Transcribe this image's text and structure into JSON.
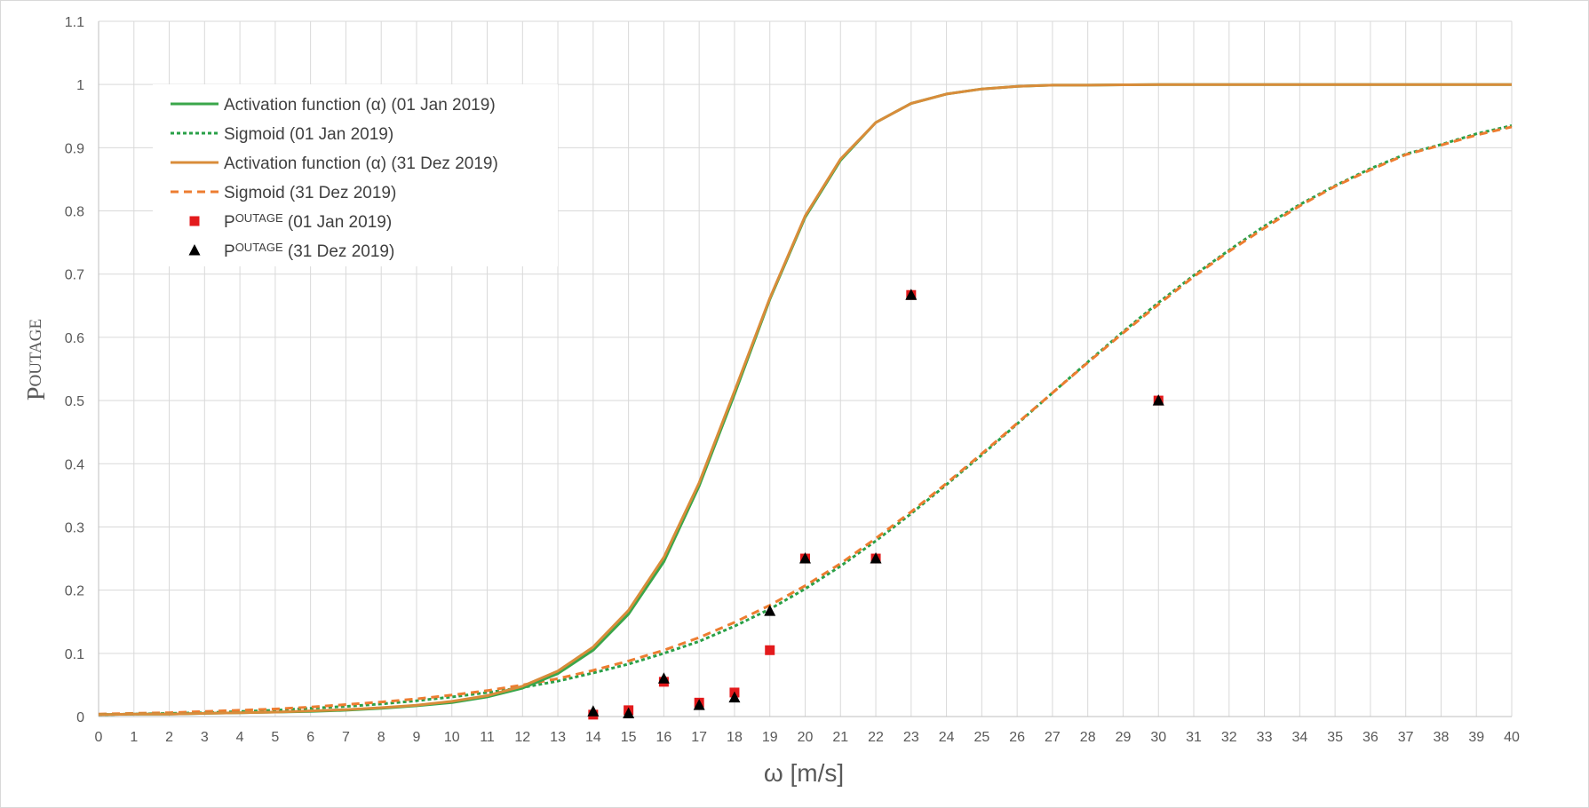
{
  "chart_data": {
    "type": "line",
    "xlabel": "ω [m/s]",
    "ylabel": {
      "main": "P",
      "super": "OUTAGE"
    },
    "xlim": [
      0,
      40
    ],
    "ylim": [
      0,
      1.1
    ],
    "x_ticks": [
      0,
      1,
      2,
      3,
      4,
      5,
      6,
      7,
      8,
      9,
      10,
      11,
      12,
      13,
      14,
      15,
      16,
      17,
      18,
      19,
      20,
      21,
      22,
      23,
      24,
      25,
      26,
      27,
      28,
      29,
      30,
      31,
      32,
      33,
      34,
      35,
      36,
      37,
      38,
      39,
      40
    ],
    "y_ticks": [
      0,
      0.1,
      0.2,
      0.3,
      0.4,
      0.5,
      0.6,
      0.7,
      0.8,
      0.9,
      1,
      1.1
    ],
    "y_tick_labels": [
      "0",
      "0.1",
      "0.2",
      "0.3",
      "0.4",
      "0.5",
      "0.6",
      "0.7",
      "0.8",
      "0.9",
      "1",
      "1.1"
    ],
    "grid": true,
    "legend_position": "top-left",
    "x": [
      0,
      1,
      2,
      3,
      4,
      5,
      6,
      7,
      8,
      9,
      10,
      11,
      12,
      13,
      14,
      15,
      16,
      17,
      18,
      19,
      20,
      21,
      22,
      23,
      24,
      25,
      26,
      27,
      28,
      29,
      30,
      31,
      32,
      33,
      34,
      35,
      36,
      37,
      38,
      39,
      40
    ],
    "series": [
      {
        "name": "Activation function (α) (01 Jan 2019)",
        "style": "solid",
        "color": "#3aa64a",
        "values": [
          0.003,
          0.004,
          0.004,
          0.005,
          0.006,
          0.007,
          0.008,
          0.01,
          0.013,
          0.017,
          0.022,
          0.031,
          0.045,
          0.068,
          0.105,
          0.162,
          0.245,
          0.365,
          0.51,
          0.66,
          0.79,
          0.88,
          0.94,
          0.97,
          0.985,
          0.993,
          0.997,
          0.999,
          0.999,
          0.9995,
          1,
          1,
          1,
          1,
          1,
          1,
          1,
          1,
          1,
          1,
          1
        ]
      },
      {
        "name": "Sigmoid (01 Jan 2019)",
        "style": "dotted",
        "color": "#2aa048",
        "values": [
          0.003,
          0.004,
          0.005,
          0.006,
          0.008,
          0.01,
          0.013,
          0.016,
          0.02,
          0.025,
          0.031,
          0.038,
          0.046,
          0.056,
          0.069,
          0.083,
          0.1,
          0.119,
          0.143,
          0.17,
          0.202,
          0.238,
          0.278,
          0.321,
          0.367,
          0.414,
          0.463,
          0.512,
          0.561,
          0.609,
          0.655,
          0.698,
          0.738,
          0.776,
          0.81,
          0.84,
          0.867,
          0.89,
          0.905,
          0.922,
          0.935
        ]
      },
      {
        "name": "Activation function (α) (31 Dez 2019)",
        "style": "solid",
        "color": "#d98c3a",
        "values": [
          0.003,
          0.004,
          0.004,
          0.005,
          0.006,
          0.007,
          0.009,
          0.011,
          0.014,
          0.018,
          0.024,
          0.033,
          0.048,
          0.072,
          0.11,
          0.168,
          0.252,
          0.37,
          0.515,
          0.662,
          0.792,
          0.882,
          0.94,
          0.97,
          0.985,
          0.993,
          0.997,
          0.999,
          0.999,
          0.9995,
          1,
          1,
          1,
          1,
          1,
          1,
          1,
          1,
          1,
          1,
          1
        ]
      },
      {
        "name": "Sigmoid (31 Dez 2019)",
        "style": "dashed",
        "color": "#ed7d31",
        "values": [
          0.004,
          0.005,
          0.006,
          0.008,
          0.01,
          0.012,
          0.015,
          0.019,
          0.023,
          0.028,
          0.034,
          0.041,
          0.05,
          0.06,
          0.073,
          0.088,
          0.105,
          0.125,
          0.149,
          0.176,
          0.207,
          0.242,
          0.282,
          0.324,
          0.369,
          0.416,
          0.464,
          0.512,
          0.56,
          0.607,
          0.652,
          0.696,
          0.736,
          0.773,
          0.808,
          0.839,
          0.865,
          0.889,
          0.904,
          0.92,
          0.933
        ]
      },
      {
        "name": "P^OUTAGE (01 Jan 2019)",
        "legend_main": "P",
        "legend_super": "OUTAGE",
        "legend_rest": " (01 Jan 2019)",
        "style": "marker-square",
        "color": "#e31a1c",
        "points": [
          [
            14,
            0.003
          ],
          [
            15,
            0.01
          ],
          [
            16,
            0.055
          ],
          [
            17,
            0.022
          ],
          [
            18,
            0.038
          ],
          [
            19,
            0.105
          ],
          [
            20,
            0.25
          ],
          [
            22,
            0.25
          ],
          [
            23,
            0.667
          ],
          [
            30,
            0.5
          ]
        ]
      },
      {
        "name": "P^OUTAGE (31 Dez 2019)",
        "legend_main": "P",
        "legend_super": "OUTAGE",
        "legend_rest": " (31 Dez 2019)",
        "style": "marker-triangle",
        "color": "#000000",
        "points": [
          [
            14,
            0.008
          ],
          [
            15,
            0.005
          ],
          [
            16,
            0.06
          ],
          [
            17,
            0.018
          ],
          [
            18,
            0.03
          ],
          [
            19,
            0.167
          ],
          [
            20,
            0.25
          ],
          [
            22,
            0.25
          ],
          [
            23,
            0.667
          ],
          [
            30,
            0.5
          ]
        ]
      }
    ]
  }
}
